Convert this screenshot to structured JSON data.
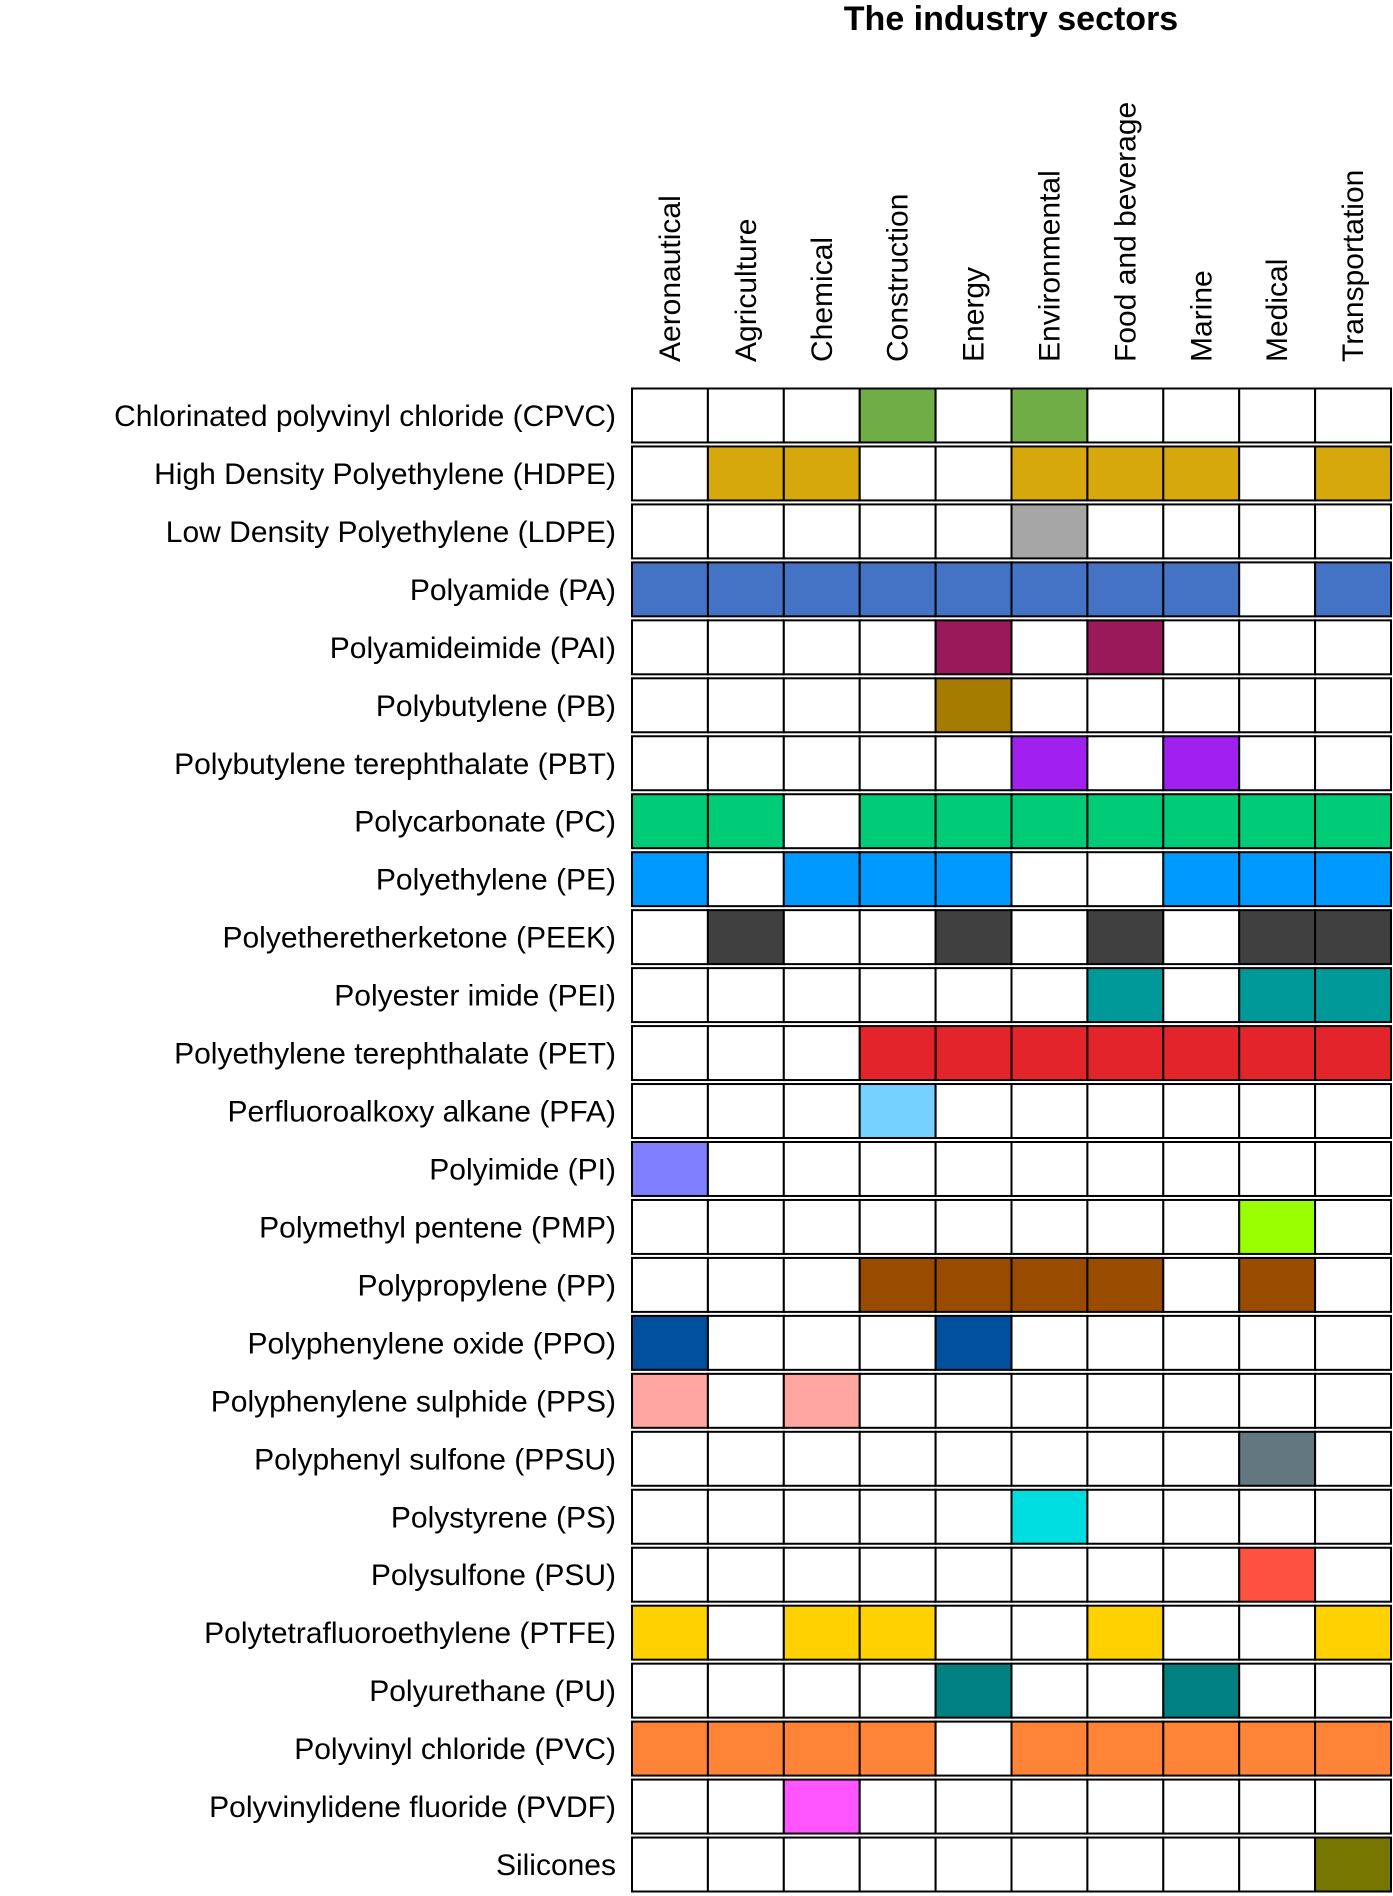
{
  "chart_data": {
    "type": "matrix",
    "title": "The industry sectors",
    "columns": [
      "Aeronautical",
      "Agriculture",
      "Chemical",
      "Construction",
      "Energy",
      "Environmental",
      "Food and beverage",
      "Marine",
      "Medical",
      "Transportation"
    ],
    "rows": [
      {
        "name": "Chlorinated polyvinyl chloride (CPVC)",
        "color": "#70ad47",
        "values": [
          0,
          0,
          0,
          1,
          0,
          1,
          0,
          0,
          0,
          0
        ]
      },
      {
        "name": "High Density Polyethylene (HDPE)",
        "color": "#d6a80c",
        "values": [
          0,
          1,
          1,
          0,
          0,
          1,
          1,
          1,
          0,
          1
        ]
      },
      {
        "name": "Low Density Polyethylene (LDPE)",
        "color": "#a6a6a6",
        "values": [
          0,
          0,
          0,
          0,
          0,
          1,
          0,
          0,
          0,
          0
        ]
      },
      {
        "name": "Polyamide (PA)",
        "color": "#4472c4",
        "values": [
          1,
          1,
          1,
          1,
          1,
          1,
          1,
          1,
          0,
          1
        ]
      },
      {
        "name": "Polyamideimide (PAI)",
        "color": "#99195a",
        "values": [
          0,
          0,
          0,
          0,
          1,
          0,
          1,
          0,
          0,
          0
        ]
      },
      {
        "name": "Polybutylene (PB)",
        "color": "#a67c00",
        "values": [
          0,
          0,
          0,
          0,
          1,
          0,
          0,
          0,
          0,
          0
        ]
      },
      {
        "name": "Polybutylene terephthalate (PBT)",
        "color": "#a020f0",
        "values": [
          0,
          0,
          0,
          0,
          0,
          1,
          0,
          1,
          0,
          0
        ]
      },
      {
        "name": "Polycarbonate (PC)",
        "color": "#00cc77",
        "values": [
          1,
          1,
          0,
          1,
          1,
          1,
          1,
          1,
          1,
          1
        ]
      },
      {
        "name": "Polyethylene (PE)",
        "color": "#0099ff",
        "values": [
          1,
          0,
          1,
          1,
          1,
          0,
          0,
          1,
          1,
          1
        ]
      },
      {
        "name": "Polyetheretherketone (PEEK)",
        "color": "#404040",
        "values": [
          0,
          1,
          0,
          0,
          1,
          0,
          1,
          0,
          1,
          1
        ]
      },
      {
        "name": "Polyester imide (PEI)",
        "color": "#00999a",
        "values": [
          0,
          0,
          0,
          0,
          0,
          0,
          1,
          0,
          1,
          1
        ]
      },
      {
        "name": "Polyethylene terephthalate (PET)",
        "color": "#e3242b",
        "values": [
          0,
          0,
          0,
          1,
          1,
          1,
          1,
          1,
          1,
          1
        ]
      },
      {
        "name": "Perfluoroalkoxy alkane (PFA)",
        "color": "#75d1ff",
        "values": [
          0,
          0,
          0,
          1,
          0,
          0,
          0,
          0,
          0,
          0
        ]
      },
      {
        "name": "Polyimide (PI)",
        "color": "#7f7fff",
        "values": [
          1,
          0,
          0,
          0,
          0,
          0,
          0,
          0,
          0,
          0
        ]
      },
      {
        "name": "Polymethyl pentene (PMP)",
        "color": "#99ff00",
        "values": [
          0,
          0,
          0,
          0,
          0,
          0,
          0,
          0,
          1,
          0
        ]
      },
      {
        "name": "Polypropylene (PP)",
        "color": "#994c00",
        "values": [
          0,
          0,
          0,
          1,
          1,
          1,
          1,
          0,
          1,
          0
        ]
      },
      {
        "name": "Polyphenylene oxide (PPO)",
        "color": "#00509d",
        "values": [
          1,
          0,
          0,
          0,
          1,
          0,
          0,
          0,
          0,
          0
        ]
      },
      {
        "name": "Polyphenylene sulphide (PPS)",
        "color": "#ffa6a0",
        "values": [
          1,
          0,
          1,
          0,
          0,
          0,
          0,
          0,
          0,
          0
        ]
      },
      {
        "name": "Polyphenyl sulfone (PPSU)",
        "color": "#637780",
        "values": [
          0,
          0,
          0,
          0,
          0,
          0,
          0,
          0,
          1,
          0
        ]
      },
      {
        "name": "Polystyrene (PS)",
        "color": "#00dde0",
        "values": [
          0,
          0,
          0,
          0,
          0,
          1,
          0,
          0,
          0,
          0
        ]
      },
      {
        "name": "Polysulfone (PSU)",
        "color": "#ff5040",
        "values": [
          0,
          0,
          0,
          0,
          0,
          0,
          0,
          0,
          1,
          0
        ]
      },
      {
        "name": "Polytetrafluoroethylene (PTFE)",
        "color": "#ffd100",
        "values": [
          1,
          0,
          1,
          1,
          0,
          0,
          1,
          0,
          0,
          1
        ]
      },
      {
        "name": "Polyurethane (PU)",
        "color": "#008080",
        "values": [
          0,
          0,
          0,
          0,
          1,
          0,
          0,
          1,
          0,
          0
        ]
      },
      {
        "name": "Polyvinyl chloride (PVC)",
        "color": "#ff8438",
        "values": [
          1,
          1,
          1,
          1,
          0,
          1,
          1,
          1,
          1,
          1
        ]
      },
      {
        "name": "Polyvinylidene fluoride (PVDF)",
        "color": "#ff55ff",
        "values": [
          0,
          0,
          1,
          0,
          0,
          0,
          0,
          0,
          0,
          0
        ]
      },
      {
        "name": "Silicones",
        "color": "#767600",
        "values": [
          0,
          0,
          0,
          0,
          0,
          0,
          0,
          0,
          0,
          1
        ]
      }
    ]
  }
}
